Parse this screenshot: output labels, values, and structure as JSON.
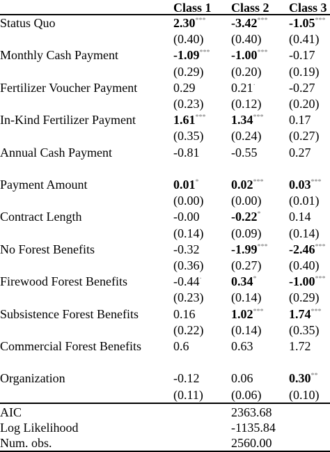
{
  "header": {
    "col1": "Class 1",
    "col2": "Class 2",
    "col3": "Class 3"
  },
  "rows": [
    {
      "label": "Status Quo",
      "c1": {
        "v": "2.30",
        "s": "***",
        "b": true
      },
      "c2": {
        "v": "-3.42",
        "s": "***",
        "b": true
      },
      "c3": {
        "v": "-1.05",
        "s": "***",
        "b": true
      }
    },
    {
      "label": "",
      "c1": {
        "v": "(0.40)"
      },
      "c2": {
        "v": "(0.40)"
      },
      "c3": {
        "v": "(0.41)"
      }
    },
    {
      "label": "Monthly Cash Payment",
      "c1": {
        "v": "-1.09",
        "s": "***",
        "b": true
      },
      "c2": {
        "v": "-1.00",
        "s": "***",
        "b": true
      },
      "c3": {
        "v": "-0.17"
      }
    },
    {
      "label": "",
      "c1": {
        "v": "(0.29)"
      },
      "c2": {
        "v": "(0.20)"
      },
      "c3": {
        "v": "(0.19)"
      }
    },
    {
      "label": "Fertilizer Voucher Payment",
      "c1": {
        "v": "0.29"
      },
      "c2": {
        "v": "0.21",
        "s": "·"
      },
      "c3": {
        "v": "-0.27"
      }
    },
    {
      "label": "",
      "c1": {
        "v": "(0.23)"
      },
      "c2": {
        "v": "(0.12)"
      },
      "c3": {
        "v": "(0.20)"
      }
    },
    {
      "label": "In-Kind Fertilizer Payment",
      "c1": {
        "v": "1.61",
        "s": "***",
        "b": true
      },
      "c2": {
        "v": "1.34",
        "s": "***",
        "b": true
      },
      "c3": {
        "v": "0.17"
      }
    },
    {
      "label": "",
      "c1": {
        "v": "(0.35)"
      },
      "c2": {
        "v": "(0.24)"
      },
      "c3": {
        "v": "(0.27)"
      }
    },
    {
      "label": "Annual Cash Payment",
      "c1": {
        "v": "-0.81"
      },
      "c2": {
        "v": "-0.55"
      },
      "c3": {
        "v": "0.27"
      }
    },
    {
      "label": "",
      "c1": {
        "v": ""
      },
      "c2": {
        "v": ""
      },
      "c3": {
        "v": ""
      }
    },
    {
      "label": "Payment Amount",
      "c1": {
        "v": "0.01",
        "s": "*",
        "b": true
      },
      "c2": {
        "v": "0.02",
        "s": "***",
        "b": true
      },
      "c3": {
        "v": "0.03",
        "s": "***",
        "b": true
      }
    },
    {
      "label": "",
      "c1": {
        "v": "(0.00)"
      },
      "c2": {
        "v": "(0.00)"
      },
      "c3": {
        "v": "(0.01)"
      }
    },
    {
      "label": "Contract Length",
      "c1": {
        "v": "-0.00"
      },
      "c2": {
        "v": "-0.22",
        "s": "*",
        "b": true
      },
      "c3": {
        "v": "0.14"
      }
    },
    {
      "label": "",
      "c1": {
        "v": "(0.14)"
      },
      "c2": {
        "v": "(0.09)"
      },
      "c3": {
        "v": "(0.14)"
      }
    },
    {
      "label": "No Forest Benefits",
      "c1": {
        "v": "-0.32"
      },
      "c2": {
        "v": "-1.99",
        "s": "***",
        "b": true
      },
      "c3": {
        "v": "-2.46",
        "s": "***",
        "b": true
      }
    },
    {
      "label": "",
      "c1": {
        "v": "(0.36)"
      },
      "c2": {
        "v": "(0.27)"
      },
      "c3": {
        "v": "(0.40)"
      }
    },
    {
      "label": "Firewood Forest Benefits",
      "c1": {
        "v": "-0.44",
        "s": "·"
      },
      "c2": {
        "v": "0.34",
        "s": "*",
        "b": true
      },
      "c3": {
        "v": "-1.00",
        "s": "***",
        "b": true
      }
    },
    {
      "label": "",
      "c1": {
        "v": "(0.23)"
      },
      "c2": {
        "v": "(0.14)"
      },
      "c3": {
        "v": "(0.29)"
      }
    },
    {
      "label": "Subsistence Forest Benefits",
      "c1": {
        "v": "0.16"
      },
      "c2": {
        "v": "1.02",
        "s": "***",
        "b": true
      },
      "c3": {
        "v": "1.74",
        "s": "***",
        "b": true
      }
    },
    {
      "label": "",
      "c1": {
        "v": "(0.22)"
      },
      "c2": {
        "v": "(0.14)"
      },
      "c3": {
        "v": "(0.35)"
      }
    },
    {
      "label": "Commercial Forest Benefits",
      "c1": {
        "v": "0.6"
      },
      "c2": {
        "v": "0.63"
      },
      "c3": {
        "v": "1.72"
      }
    },
    {
      "label": "",
      "c1": {
        "v": ""
      },
      "c2": {
        "v": ""
      },
      "c3": {
        "v": ""
      }
    },
    {
      "label": "Organization",
      "c1": {
        "v": "-0.12"
      },
      "c2": {
        "v": "0.06"
      },
      "c3": {
        "v": "0.30",
        "s": "**",
        "b": true
      }
    },
    {
      "label": "",
      "c1": {
        "v": "(0.11)"
      },
      "c2": {
        "v": "(0.06)"
      },
      "c3": {
        "v": "(0.10)"
      }
    }
  ],
  "fit": [
    {
      "label": "AIC",
      "value": "2363.68"
    },
    {
      "label": "Log Likelihood",
      "value": "-1135.84"
    },
    {
      "label": "Num. obs.",
      "value": "2560.00"
    }
  ]
}
